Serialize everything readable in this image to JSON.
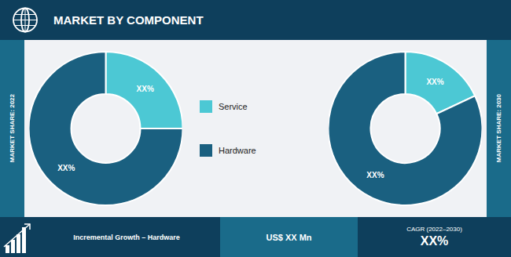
{
  "title": "MARKET BY COMPONENT",
  "annotations": [
    "Incremental Growth – Hardware",
    "US$ XX Mn",
    "CAGR (2022–2030)",
    "XX%"
  ],
  "chart_data": [
    {
      "type": "pie",
      "title": "MARKET SHARE: 2022",
      "categories": [
        "Service",
        "Hardware"
      ],
      "values": [
        25,
        75
      ],
      "value_labels": [
        "XX%",
        "XX%"
      ],
      "colors": [
        "#4cc8d4",
        "#1a6080"
      ],
      "data_labels": true
    },
    {
      "type": "pie",
      "title": "MARKET SHARE: 2030",
      "categories": [
        "Service",
        "Hardware"
      ],
      "values": [
        18,
        82
      ],
      "value_labels": [
        "XX%",
        "XX%"
      ],
      "colors": [
        "#4cc8d4",
        "#1a6080"
      ],
      "data_labels": true
    }
  ]
}
